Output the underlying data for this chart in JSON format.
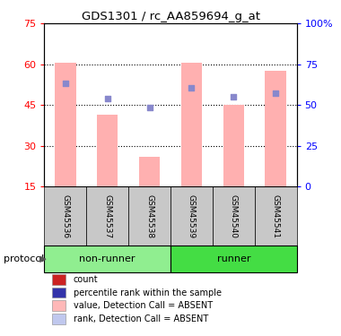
{
  "title": "GDS1301 / rc_AA859694_g_at",
  "samples": [
    "GSM45536",
    "GSM45537",
    "GSM45538",
    "GSM45539",
    "GSM45540",
    "GSM45541"
  ],
  "bar_values": [
    60.5,
    41.5,
    26.0,
    60.5,
    45.0,
    57.5
  ],
  "blue_dot_values": [
    53.0,
    47.5,
    44.0,
    51.5,
    48.0,
    49.5
  ],
  "bar_color": "#FFB0B0",
  "blue_dot_color": "#8888CC",
  "left_yticks": [
    15,
    30,
    45,
    60,
    75
  ],
  "right_yticklabels": [
    "0",
    "25",
    "50",
    "75",
    "100%"
  ],
  "ymin": 15,
  "ymax": 75,
  "gridlines": [
    30,
    45,
    60
  ],
  "protocol_groups": [
    {
      "label": "non-runner",
      "indices": [
        0,
        1,
        2
      ],
      "color": "#90EE90"
    },
    {
      "label": "runner",
      "indices": [
        3,
        4,
        5
      ],
      "color": "#44DD44"
    }
  ],
  "legend_items": [
    {
      "label": "count",
      "color": "#CC2222"
    },
    {
      "label": "percentile rank within the sample",
      "color": "#3333AA"
    },
    {
      "label": "value, Detection Call = ABSENT",
      "color": "#FFB8B8"
    },
    {
      "label": "rank, Detection Call = ABSENT",
      "color": "#C0C8EE"
    }
  ],
  "protocol_label": "protocol",
  "sample_box_color": "#C8C8C8",
  "bar_width": 0.5
}
